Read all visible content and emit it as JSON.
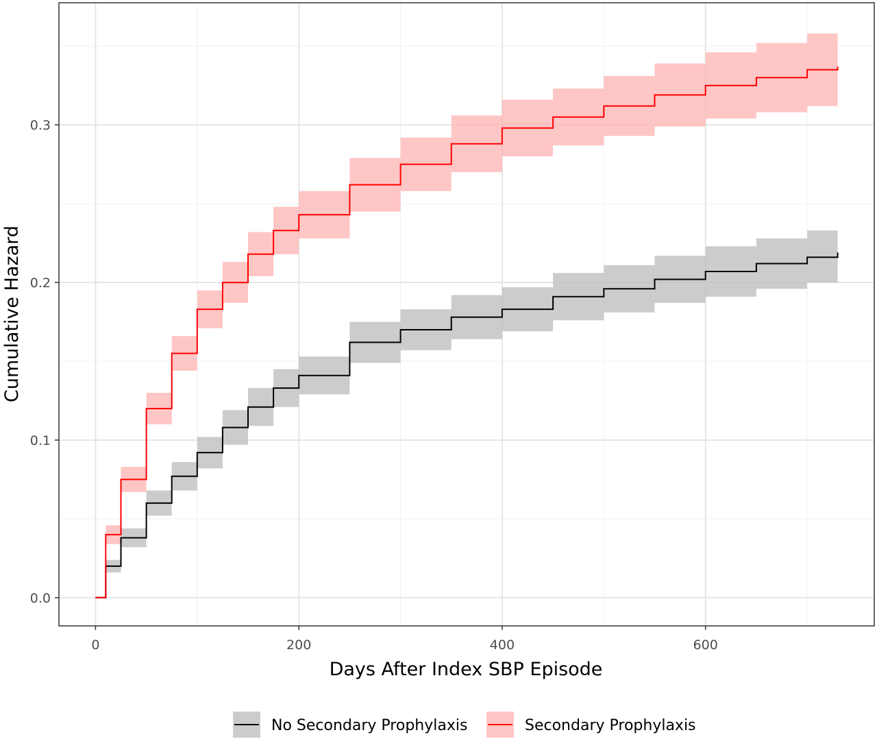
{
  "chart_data": {
    "type": "line",
    "title": "",
    "xlabel": "Days After Index SBP Episode",
    "ylabel": "Cumulative Hazard",
    "xlim": [
      -36,
      766
    ],
    "ylim": [
      -0.0179,
      0.3775
    ],
    "x_ticks": [
      0,
      200,
      400,
      600
    ],
    "y_ticks": [
      0.0,
      0.1,
      0.2,
      0.3
    ],
    "x_tick_labels": [
      "0",
      "200",
      "400",
      "600"
    ],
    "y_tick_labels": [
      "0.0",
      "0.1",
      "0.2",
      "0.3"
    ],
    "grid": true,
    "legend_position": "bottom",
    "series": [
      {
        "name": "No Secondary Prophylaxis",
        "line_color": "#000000",
        "band_color": "#bfbfbf",
        "band_opacity": 0.8,
        "x": [
          0,
          10,
          25,
          50,
          75,
          100,
          125,
          150,
          175,
          200,
          250,
          300,
          350,
          400,
          450,
          500,
          550,
          600,
          650,
          700,
          730
        ],
        "y": [
          0,
          0.02,
          0.038,
          0.06,
          0.077,
          0.092,
          0.108,
          0.121,
          0.133,
          0.141,
          0.162,
          0.17,
          0.178,
          0.183,
          0.191,
          0.196,
          0.202,
          0.207,
          0.212,
          0.216,
          0.219
        ],
        "lower": [
          0,
          0.016,
          0.032,
          0.052,
          0.068,
          0.082,
          0.097,
          0.109,
          0.121,
          0.129,
          0.149,
          0.157,
          0.164,
          0.169,
          0.176,
          0.181,
          0.187,
          0.191,
          0.196,
          0.2,
          0.202
        ],
        "upper": [
          0,
          0.024,
          0.044,
          0.068,
          0.086,
          0.102,
          0.119,
          0.133,
          0.145,
          0.153,
          0.175,
          0.183,
          0.192,
          0.197,
          0.206,
          0.211,
          0.217,
          0.223,
          0.228,
          0.233,
          0.238
        ]
      },
      {
        "name": "Secondary Prophylaxis",
        "line_color": "#ff0000",
        "band_color": "#ffb3b3",
        "band_opacity": 0.75,
        "x": [
          0,
          10,
          25,
          50,
          75,
          100,
          125,
          150,
          175,
          200,
          250,
          300,
          350,
          400,
          450,
          500,
          550,
          600,
          650,
          700,
          730
        ],
        "y": [
          0,
          0.04,
          0.075,
          0.12,
          0.155,
          0.183,
          0.2,
          0.218,
          0.233,
          0.243,
          0.262,
          0.275,
          0.288,
          0.298,
          0.305,
          0.312,
          0.319,
          0.325,
          0.33,
          0.335,
          0.337
        ],
        "lower": [
          0,
          0.034,
          0.067,
          0.11,
          0.144,
          0.171,
          0.187,
          0.204,
          0.218,
          0.228,
          0.245,
          0.258,
          0.27,
          0.28,
          0.287,
          0.293,
          0.299,
          0.304,
          0.308,
          0.312,
          0.313
        ],
        "upper": [
          0,
          0.046,
          0.083,
          0.13,
          0.166,
          0.195,
          0.213,
          0.232,
          0.248,
          0.258,
          0.279,
          0.292,
          0.306,
          0.316,
          0.323,
          0.331,
          0.339,
          0.346,
          0.352,
          0.358,
          0.362
        ]
      }
    ]
  }
}
